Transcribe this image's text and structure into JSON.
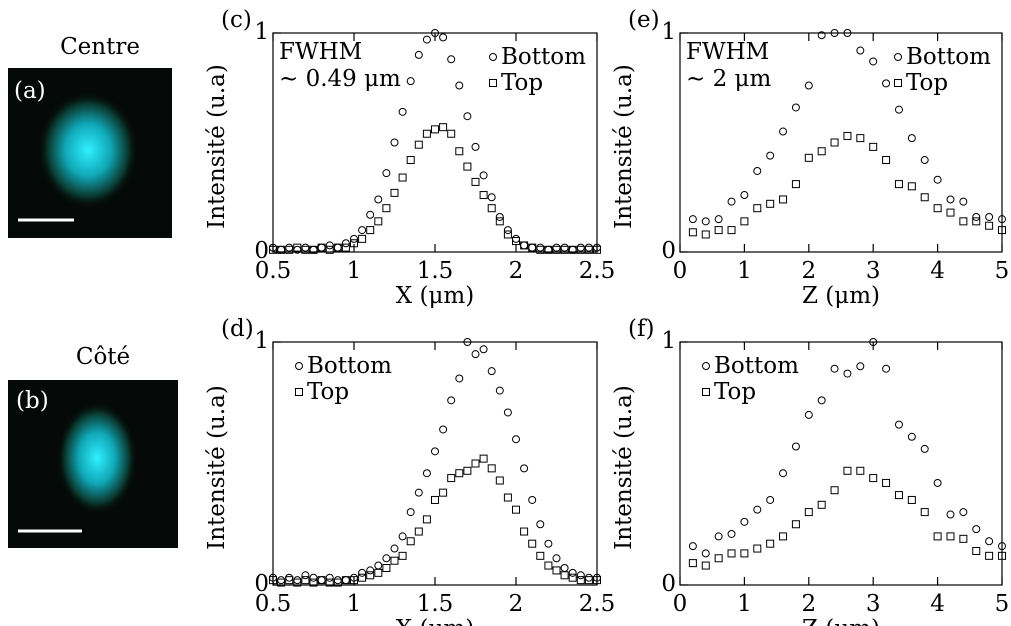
{
  "images": [
    {
      "title": "Centre",
      "panel": "(a)"
    },
    {
      "title": "Côté",
      "panel": "(b)"
    }
  ],
  "chart_data": [
    {
      "type": "scatter",
      "panel": "(c)",
      "xlabel": "X (μm)",
      "ylabel": "Intensité (u.a)",
      "annotations": [
        "FWHM",
        "∼ 0.49 μm"
      ],
      "legend": "upper right",
      "x": [
        0.5,
        0.55,
        0.6,
        0.65,
        0.7,
        0.75,
        0.8,
        0.85,
        0.9,
        0.95,
        1.0,
        1.05,
        1.1,
        1.15,
        1.2,
        1.25,
        1.3,
        1.35,
        1.4,
        1.45,
        1.5,
        1.55,
        1.6,
        1.65,
        1.7,
        1.75,
        1.8,
        1.85,
        1.9,
        1.95,
        2.0,
        2.05,
        2.1,
        2.15,
        2.2,
        2.25,
        2.3,
        2.35,
        2.4,
        2.45,
        2.5
      ],
      "series": [
        {
          "name": "Bottom",
          "marker": "circle",
          "color": "#000000",
          "values": [
            0.02,
            0.01,
            0.02,
            0.01,
            0.02,
            0.01,
            0.02,
            0.03,
            0.02,
            0.04,
            0.06,
            0.1,
            0.17,
            0.24,
            0.36,
            0.5,
            0.64,
            0.78,
            0.9,
            0.97,
            1.0,
            0.98,
            0.88,
            0.76,
            0.62,
            0.48,
            0.35,
            0.25,
            0.16,
            0.1,
            0.06,
            0.03,
            0.02,
            0.02,
            0.01,
            0.02,
            0.02,
            0.01,
            0.02,
            0.02,
            0.02
          ]
        },
        {
          "name": "Top",
          "marker": "square",
          "color": "#000000",
          "values": [
            0.01,
            0.01,
            0.01,
            0.02,
            0.01,
            0.01,
            0.02,
            0.01,
            0.02,
            0.02,
            0.04,
            0.06,
            0.1,
            0.14,
            0.2,
            0.27,
            0.34,
            0.42,
            0.49,
            0.54,
            0.56,
            0.57,
            0.54,
            0.46,
            0.39,
            0.32,
            0.26,
            0.2,
            0.14,
            0.08,
            0.05,
            0.03,
            0.02,
            0.01,
            0.01,
            0.01,
            0.01,
            0.01,
            0.01,
            0.01,
            0.01
          ]
        }
      ],
      "xlim": [
        0.5,
        2.5
      ],
      "ylim": [
        0,
        1
      ],
      "xticks": [
        0.5,
        1,
        1.5,
        2,
        2.5
      ],
      "yticks": [
        0,
        1
      ]
    },
    {
      "type": "scatter",
      "panel": "(e)",
      "xlabel": "Z (μm)",
      "ylabel": "Intensité (u.a)",
      "annotations": [
        "FWHM",
        "∼ 2 μm"
      ],
      "legend": "upper right",
      "x": [
        0.2,
        0.4,
        0.6,
        0.8,
        1.0,
        1.2,
        1.4,
        1.6,
        1.8,
        2.0,
        2.2,
        2.4,
        2.6,
        2.8,
        3.0,
        3.2,
        3.4,
        3.6,
        3.8,
        4.0,
        4.2,
        4.4,
        4.6,
        4.8,
        5.0
      ],
      "series": [
        {
          "name": "Bottom",
          "marker": "circle",
          "color": "#000000",
          "values": [
            0.15,
            0.14,
            0.15,
            0.23,
            0.26,
            0.37,
            0.44,
            0.55,
            0.66,
            0.76,
            0.99,
            1.0,
            1.0,
            0.92,
            0.87,
            0.77,
            0.65,
            0.52,
            0.42,
            0.33,
            0.24,
            0.23,
            0.16,
            0.16,
            0.15
          ]
        },
        {
          "name": "Top",
          "marker": "square",
          "color": "#000000",
          "values": [
            0.09,
            0.08,
            0.1,
            0.1,
            0.14,
            0.2,
            0.22,
            0.24,
            0.31,
            0.43,
            0.46,
            0.5,
            0.53,
            0.52,
            0.48,
            0.42,
            0.31,
            0.3,
            0.25,
            0.2,
            0.18,
            0.14,
            0.14,
            0.12,
            0.1
          ]
        }
      ],
      "xlim": [
        0,
        5
      ],
      "ylim": [
        0,
        1
      ],
      "xticks": [
        0,
        1,
        2,
        3,
        4,
        5
      ],
      "yticks": [
        0,
        1
      ]
    },
    {
      "type": "scatter",
      "panel": "(d)",
      "xlabel": "X (μm)",
      "ylabel": "Intensité (u.a)",
      "legend": "upper left",
      "x": [
        0.5,
        0.55,
        0.6,
        0.65,
        0.7,
        0.75,
        0.8,
        0.85,
        0.9,
        0.95,
        1.0,
        1.05,
        1.1,
        1.15,
        1.2,
        1.25,
        1.3,
        1.35,
        1.4,
        1.45,
        1.5,
        1.55,
        1.6,
        1.65,
        1.7,
        1.75,
        1.8,
        1.85,
        1.9,
        1.95,
        2.0,
        2.05,
        2.1,
        2.15,
        2.2,
        2.25,
        2.3,
        2.35,
        2.4,
        2.45,
        2.5
      ],
      "series": [
        {
          "name": "Bottom",
          "marker": "circle",
          "color": "#000000",
          "values": [
            0.03,
            0.02,
            0.03,
            0.02,
            0.04,
            0.03,
            0.02,
            0.03,
            0.02,
            0.02,
            0.03,
            0.05,
            0.06,
            0.08,
            0.11,
            0.15,
            0.2,
            0.3,
            0.38,
            0.46,
            0.55,
            0.64,
            0.76,
            0.85,
            1.0,
            0.95,
            0.97,
            0.88,
            0.8,
            0.71,
            0.6,
            0.48,
            0.35,
            0.25,
            0.17,
            0.11,
            0.07,
            0.05,
            0.04,
            0.03,
            0.03
          ]
        },
        {
          "name": "Top",
          "marker": "square",
          "color": "#000000",
          "values": [
            0.02,
            0.01,
            0.02,
            0.01,
            0.02,
            0.01,
            0.02,
            0.01,
            0.01,
            0.02,
            0.02,
            0.03,
            0.04,
            0.05,
            0.07,
            0.1,
            0.12,
            0.18,
            0.22,
            0.27,
            0.35,
            0.38,
            0.44,
            0.46,
            0.47,
            0.5,
            0.52,
            0.48,
            0.43,
            0.36,
            0.31,
            0.22,
            0.17,
            0.12,
            0.08,
            0.06,
            0.04,
            0.03,
            0.02,
            0.02,
            0.02
          ]
        }
      ],
      "xlim": [
        0.5,
        2.5
      ],
      "ylim": [
        0,
        1
      ],
      "xticks": [
        0.5,
        1,
        1.5,
        2,
        2.5
      ],
      "yticks": [
        0,
        1
      ]
    },
    {
      "type": "scatter",
      "panel": "(f)",
      "xlabel": "Z (μm)",
      "ylabel": "Intensité (u.a)",
      "legend": "upper left",
      "x": [
        0.2,
        0.4,
        0.6,
        0.8,
        1.0,
        1.2,
        1.4,
        1.6,
        1.8,
        2.0,
        2.2,
        2.4,
        2.6,
        2.8,
        3.0,
        3.2,
        3.4,
        3.6,
        3.8,
        4.0,
        4.2,
        4.4,
        4.6,
        4.8,
        5.0
      ],
      "series": [
        {
          "name": "Bottom",
          "marker": "circle",
          "color": "#000000",
          "values": [
            0.16,
            0.13,
            0.2,
            0.21,
            0.26,
            0.31,
            0.35,
            0.46,
            0.57,
            0.7,
            0.76,
            0.89,
            0.87,
            0.9,
            1.0,
            0.89,
            0.66,
            0.61,
            0.56,
            0.42,
            0.29,
            0.3,
            0.23,
            0.18,
            0.16
          ]
        },
        {
          "name": "Top",
          "marker": "square",
          "color": "#000000",
          "values": [
            0.09,
            0.08,
            0.11,
            0.13,
            0.13,
            0.15,
            0.17,
            0.2,
            0.25,
            0.3,
            0.33,
            0.39,
            0.47,
            0.47,
            0.44,
            0.42,
            0.37,
            0.35,
            0.3,
            0.2,
            0.2,
            0.19,
            0.14,
            0.12,
            0.12
          ]
        }
      ],
      "xlim": [
        0,
        5
      ],
      "ylim": [
        0,
        1
      ],
      "xticks": [
        0,
        1,
        2,
        3,
        4,
        5
      ],
      "yticks": [
        0,
        1
      ]
    }
  ]
}
